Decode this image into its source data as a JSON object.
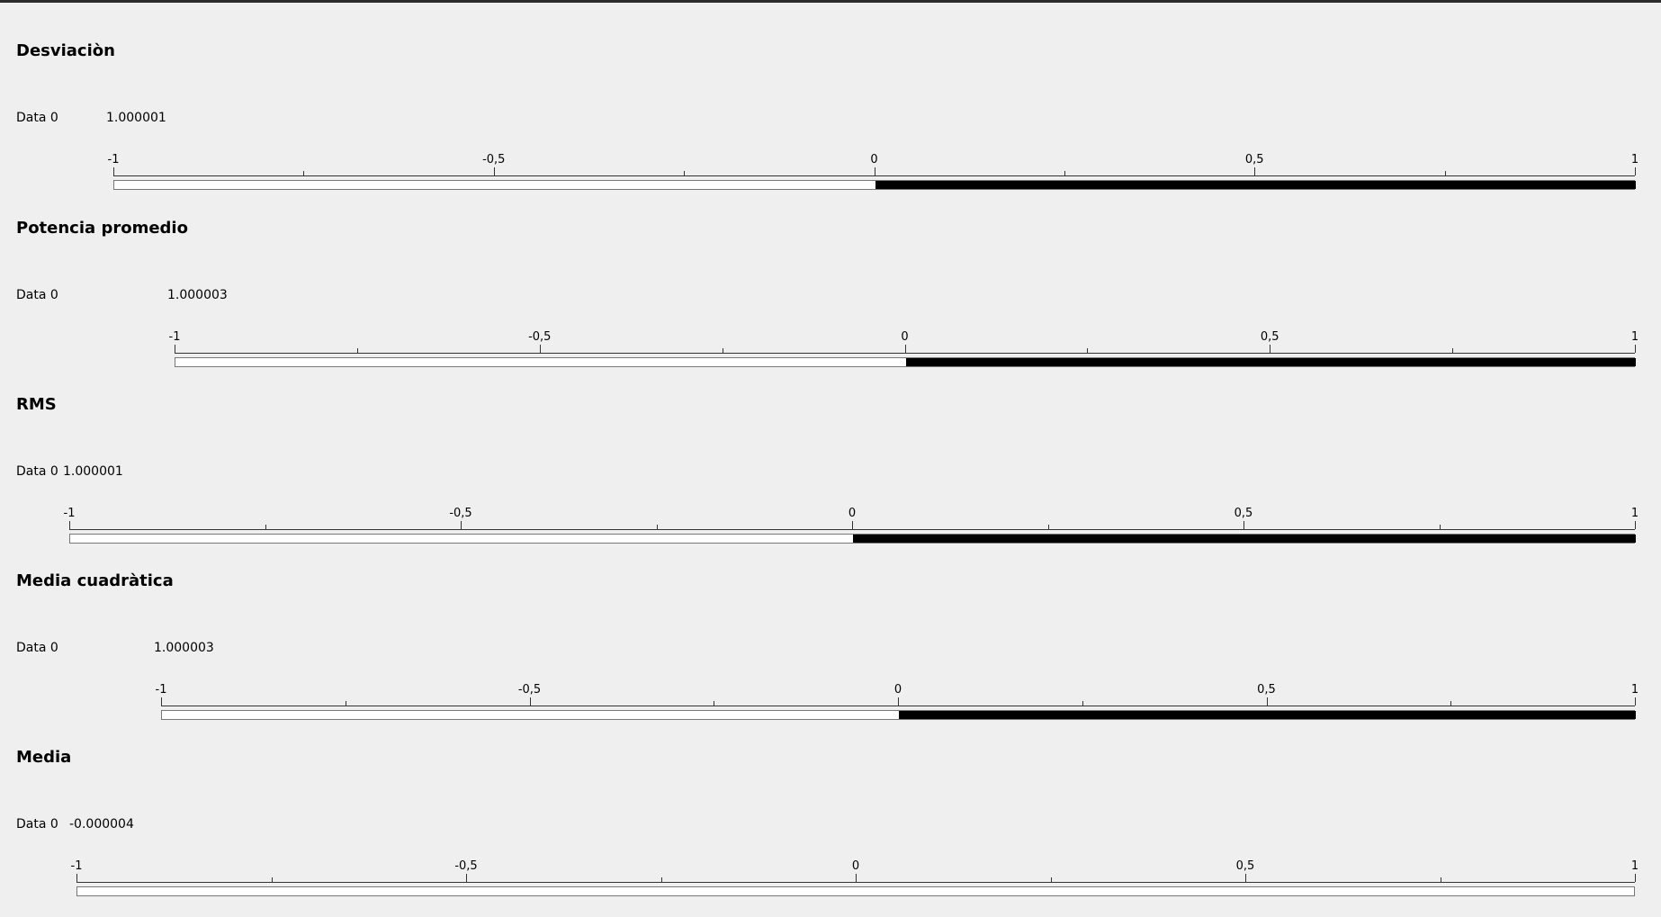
{
  "gauge_scale": {
    "min": -1,
    "max": 1,
    "tick_labels": [
      "-1",
      "-0,5",
      "0",
      "0,5",
      "1"
    ]
  },
  "colors": {
    "background": "#efefef",
    "fill": "#000000",
    "bar_empty": "#ffffff"
  },
  "panels": [
    {
      "title": "Desviaciòn",
      "label": "Data 0",
      "value_text": "1.000001",
      "value": 1.000001
    },
    {
      "title": "Potencia promedio",
      "label": "Data 0",
      "value_text": "1.000003",
      "value": 1.000003
    },
    {
      "title": "RMS",
      "label": "Data 0",
      "value_text": "1.000001",
      "value": 1.000001
    },
    {
      "title": "Media cuadràtica",
      "label": "Data 0",
      "value_text": "1.000003",
      "value": 1.000003
    },
    {
      "title": "Media",
      "label": "Data 0",
      "value_text": "-0.000004",
      "value": -4e-06
    }
  ]
}
